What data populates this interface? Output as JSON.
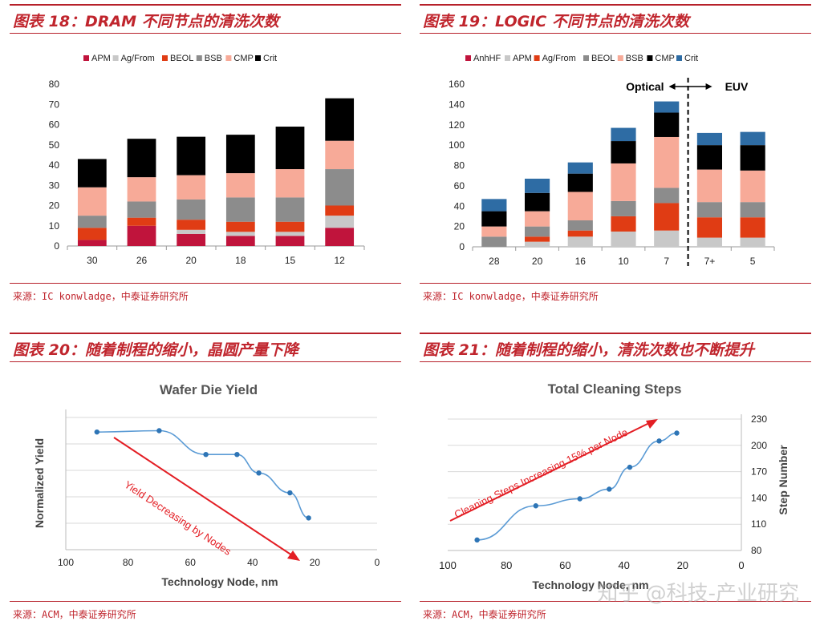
{
  "panels": [
    {
      "title": "图表 18：DRAM 不同节点的清洗次数",
      "source": "来源：IC konwladge，中泰证券研究所"
    },
    {
      "title": "图表 19：LOGIC 不同节点的清洗次数",
      "source": "来源：IC konwladge，中泰证券研究所"
    },
    {
      "title": "图表 20：随着制程的缩小，晶圆产量下降",
      "source": "来源：ACM，中泰证券研究所"
    },
    {
      "title": "图表 21：随着制程的缩小，清洗次数也不断提升",
      "source": "来源：ACM，中泰证券研究所"
    }
  ],
  "watermark": "知乎 @科技-产业研究",
  "chart_data": [
    {
      "type": "bar",
      "stacked": true,
      "categories": [
        "30",
        "26",
        "20",
        "18",
        "15",
        "12"
      ],
      "ylim": [
        0,
        80
      ],
      "yticks": [
        0,
        10,
        20,
        30,
        40,
        50,
        60,
        70,
        80
      ],
      "legend_position": "top",
      "series": [
        {
          "name": "APM",
          "color": "#c0143c",
          "values": [
            3,
            10,
            6,
            5,
            5,
            9
          ]
        },
        {
          "name": "Ag/From",
          "color": "#c8c8c8",
          "values": [
            0,
            0,
            2,
            2,
            2,
            6
          ]
        },
        {
          "name": "BEOL",
          "color": "#e03c14",
          "values": [
            6,
            4,
            5,
            5,
            5,
            5
          ]
        },
        {
          "name": "BSB",
          "color": "#8c8c8c",
          "values": [
            6,
            8,
            10,
            12,
            12,
            18
          ]
        },
        {
          "name": "CMP",
          "color": "#f7aa98",
          "values": [
            14,
            12,
            12,
            12,
            14,
            14
          ]
        },
        {
          "name": "Crit",
          "color": "#000000",
          "values": [
            14,
            19,
            19,
            19,
            21,
            21
          ]
        }
      ]
    },
    {
      "type": "bar",
      "stacked": true,
      "categories": [
        "28",
        "20",
        "16",
        "10",
        "7",
        "7+",
        "5"
      ],
      "ylim": [
        0,
        160
      ],
      "yticks": [
        0,
        20,
        40,
        60,
        80,
        100,
        120,
        140,
        160
      ],
      "legend_position": "top",
      "annotations": {
        "left": "Optical",
        "right": "EUV"
      },
      "series": [
        {
          "name": "AnhHF",
          "color": "#c0143c",
          "values": [
            0,
            0,
            0,
            0,
            0,
            0,
            0
          ]
        },
        {
          "name": "APM",
          "color": "#c8c8c8",
          "values": [
            0,
            5,
            10,
            15,
            16,
            9,
            9
          ]
        },
        {
          "name": "Ag/From",
          "color": "#e03c14",
          "values": [
            0,
            5,
            6,
            15,
            27,
            20,
            20
          ]
        },
        {
          "name": "BEOL",
          "color": "#8c8c8c",
          "values": [
            10,
            10,
            10,
            15,
            15,
            15,
            15
          ]
        },
        {
          "name": "BSB",
          "color": "#f7aa98",
          "values": [
            10,
            15,
            28,
            37,
            50,
            32,
            31
          ]
        },
        {
          "name": "CMP",
          "color": "#000000",
          "values": [
            15,
            18,
            18,
            22,
            24,
            24,
            25
          ]
        },
        {
          "name": "Crit",
          "color": "#2e6ca4",
          "values": [
            12,
            14,
            11,
            13,
            11,
            12,
            13
          ]
        }
      ]
    },
    {
      "type": "line",
      "title": "Wafer Die Yield",
      "xlabel": "Technology Node, nm",
      "ylabel": "Normalized Yield",
      "xlim": [
        100,
        0
      ],
      "xticks": [
        100,
        80,
        60,
        40,
        20,
        0
      ],
      "ylim": [
        0,
        1
      ],
      "annotation": "Yield Decreasing by Nodes",
      "series": [
        {
          "x": [
            90,
            70,
            55,
            45,
            38,
            28,
            22
          ],
          "y": [
            0.89,
            0.9,
            0.72,
            0.72,
            0.58,
            0.43,
            0.24
          ]
        }
      ]
    },
    {
      "type": "line",
      "title": "Total Cleaning Steps",
      "xlabel": "Technology Node, nm",
      "ylabel": "Step Number",
      "xlim": [
        100,
        0
      ],
      "xticks": [
        100,
        80,
        60,
        40,
        20,
        0
      ],
      "ylim": [
        80,
        230
      ],
      "yticks": [
        80,
        110,
        140,
        170,
        200,
        230
      ],
      "annotation": "Cleaning Steps Increasing 15% per Node",
      "series": [
        {
          "x": [
            90,
            70,
            55,
            45,
            38,
            28,
            22
          ],
          "y": [
            92,
            131,
            139,
            150,
            175,
            205,
            214
          ]
        }
      ]
    }
  ]
}
